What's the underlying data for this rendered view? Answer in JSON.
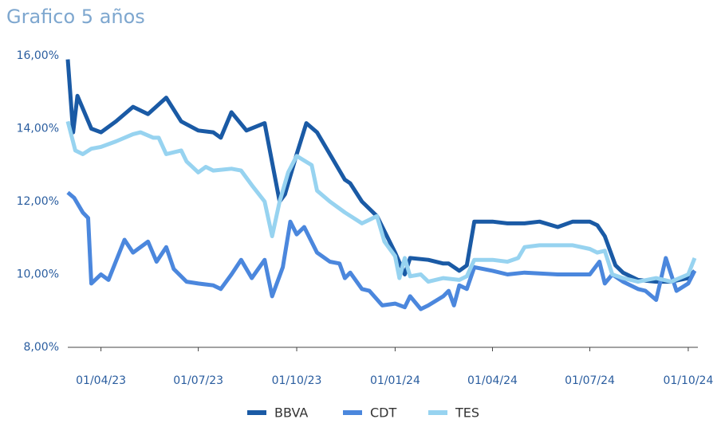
{
  "chart_data": {
    "type": "line",
    "title": "Grafico 5 años",
    "xlim": [
      "01/03/23",
      "10/10/24"
    ],
    "xticks": [
      "01/04/23",
      "01/07/23",
      "01/10/23",
      "01/01/24",
      "01/04/24",
      "01/07/24",
      "01/10/24"
    ],
    "ylim": [
      8,
      16
    ],
    "yticks": [
      {
        "value": 8,
        "label": "8,00%"
      },
      {
        "value": 10,
        "label": "10,00%"
      },
      {
        "value": 12,
        "label": "12,00%"
      },
      {
        "value": 14,
        "label": "14,00%"
      },
      {
        "value": 16,
        "label": "16,00%"
      }
    ],
    "legend": "bottom",
    "series": [
      {
        "name": "BBVA",
        "color": "#1a5aa5",
        "x": [
          "01/03/23",
          "06/03/23",
          "10/03/23",
          "23/03/23",
          "01/04/23",
          "15/04/23",
          "01/05/23",
          "15/05/23",
          "01/06/23",
          "15/06/23",
          "01/07/23",
          "15/07/23",
          "22/07/23",
          "01/08/23",
          "15/08/23",
          "01/09/23",
          "15/09/23",
          "20/09/23",
          "01/10/23",
          "10/10/23",
          "20/10/23",
          "01/11/23",
          "15/11/23",
          "20/11/23",
          "01/12/23",
          "15/12/23",
          "01/01/24",
          "10/01/24",
          "15/01/24",
          "01/02/24",
          "15/02/24",
          "20/02/24",
          "01/03/24",
          "08/03/24",
          "15/03/24",
          "01/04/24",
          "15/04/24",
          "01/05/24",
          "15/05/24",
          "01/06/24",
          "15/06/24",
          "01/07/24",
          "08/07/24",
          "15/07/24",
          "25/07/24",
          "01/08/24",
          "15/08/24",
          "01/09/24",
          "15/09/24",
          "01/10/24",
          "07/10/24"
        ],
        "values": [
          15.9,
          13.9,
          14.9,
          14.0,
          13.9,
          14.2,
          14.6,
          14.4,
          14.85,
          14.2,
          13.95,
          13.9,
          13.75,
          14.45,
          13.95,
          14.15,
          12.0,
          12.2,
          13.3,
          14.15,
          13.9,
          13.3,
          12.6,
          12.5,
          12.0,
          11.6,
          10.6,
          10.0,
          10.45,
          10.4,
          10.3,
          10.3,
          10.1,
          10.25,
          11.45,
          11.45,
          11.4,
          11.4,
          11.45,
          11.3,
          11.45,
          11.45,
          11.35,
          11.05,
          10.25,
          10.05,
          9.85,
          9.8,
          9.8,
          9.9,
          10.1
        ]
      },
      {
        "name": "CDT",
        "color": "#4b87dd",
        "x": [
          "01/03/23",
          "07/03/23",
          "15/03/23",
          "20/03/23",
          "23/03/23",
          "01/04/23",
          "08/04/23",
          "23/04/23",
          "01/05/23",
          "15/05/23",
          "23/05/23",
          "01/06/23",
          "08/06/23",
          "20/06/23",
          "01/07/23",
          "15/07/23",
          "22/07/23",
          "01/08/23",
          "10/08/23",
          "20/08/23",
          "01/09/23",
          "08/09/23",
          "18/09/23",
          "25/09/23",
          "01/10/23",
          "08/10/23",
          "20/10/23",
          "01/11/23",
          "10/11/23",
          "15/11/23",
          "20/11/23",
          "01/12/23",
          "08/12/23",
          "20/12/23",
          "01/01/24",
          "10/01/24",
          "15/01/24",
          "25/01/24",
          "01/02/24",
          "15/02/24",
          "20/02/24",
          "25/02/24",
          "01/03/24",
          "08/03/24",
          "15/03/24",
          "01/04/24",
          "15/04/24",
          "01/05/24",
          "01/06/24",
          "01/07/24",
          "10/07/24",
          "15/07/24",
          "22/07/24",
          "01/08/24",
          "15/08/24",
          "22/08/24",
          "01/09/24",
          "10/09/24",
          "20/09/24",
          "01/10/24",
          "07/10/24"
        ],
        "values": [
          12.25,
          12.1,
          11.7,
          11.55,
          9.75,
          10.0,
          9.85,
          10.95,
          10.6,
          10.9,
          10.35,
          10.75,
          10.15,
          9.8,
          9.75,
          9.7,
          9.6,
          10.0,
          10.4,
          9.9,
          10.4,
          9.4,
          10.2,
          11.45,
          11.1,
          11.3,
          10.6,
          10.35,
          10.3,
          9.9,
          10.05,
          9.6,
          9.55,
          9.15,
          9.2,
          9.1,
          9.4,
          9.05,
          9.15,
          9.4,
          9.55,
          9.15,
          9.7,
          9.6,
          10.2,
          10.1,
          10.0,
          10.05,
          10.0,
          10.0,
          10.35,
          9.75,
          10.0,
          9.8,
          9.6,
          9.55,
          9.3,
          10.45,
          9.55,
          9.75,
          10.1
        ]
      },
      {
        "name": "TES",
        "color": "#97d3f0",
        "x": [
          "01/03/23",
          "08/03/23",
          "15/03/23",
          "23/03/23",
          "01/04/23",
          "15/04/23",
          "01/05/23",
          "08/05/23",
          "20/05/23",
          "25/05/23",
          "01/06/23",
          "08/06/23",
          "15/06/23",
          "20/06/23",
          "01/07/23",
          "08/07/23",
          "15/07/23",
          "01/08/23",
          "10/08/23",
          "20/08/23",
          "01/09/23",
          "08/09/23",
          "15/09/23",
          "23/09/23",
          "01/10/23",
          "15/10/23",
          "20/10/23",
          "01/11/23",
          "15/11/23",
          "01/12/23",
          "08/12/23",
          "15/12/23",
          "22/12/23",
          "01/01/24",
          "05/01/24",
          "10/01/24",
          "15/01/24",
          "25/01/24",
          "01/02/24",
          "15/02/24",
          "01/03/24",
          "08/03/24",
          "15/03/24",
          "01/04/24",
          "15/04/24",
          "25/04/24",
          "01/05/24",
          "15/05/24",
          "01/06/24",
          "15/06/24",
          "01/07/24",
          "08/07/24",
          "15/07/24",
          "22/07/24",
          "01/08/24",
          "15/08/24",
          "01/09/24",
          "15/09/24",
          "01/10/24",
          "07/10/24"
        ],
        "values": [
          14.2,
          13.4,
          13.3,
          13.45,
          13.5,
          13.65,
          13.85,
          13.9,
          13.75,
          13.75,
          13.3,
          13.35,
          13.4,
          13.1,
          12.8,
          12.95,
          12.85,
          12.9,
          12.85,
          12.45,
          12.0,
          11.05,
          12.0,
          12.8,
          13.25,
          13.0,
          12.3,
          12.0,
          11.7,
          11.4,
          11.5,
          11.6,
          10.9,
          10.5,
          9.9,
          10.45,
          9.95,
          10.0,
          9.8,
          9.9,
          9.85,
          9.95,
          10.4,
          10.4,
          10.35,
          10.45,
          10.75,
          10.8,
          10.8,
          10.8,
          10.7,
          10.6,
          10.65,
          10.0,
          9.9,
          9.8,
          9.9,
          9.8,
          10.0,
          10.45
        ]
      }
    ]
  }
}
